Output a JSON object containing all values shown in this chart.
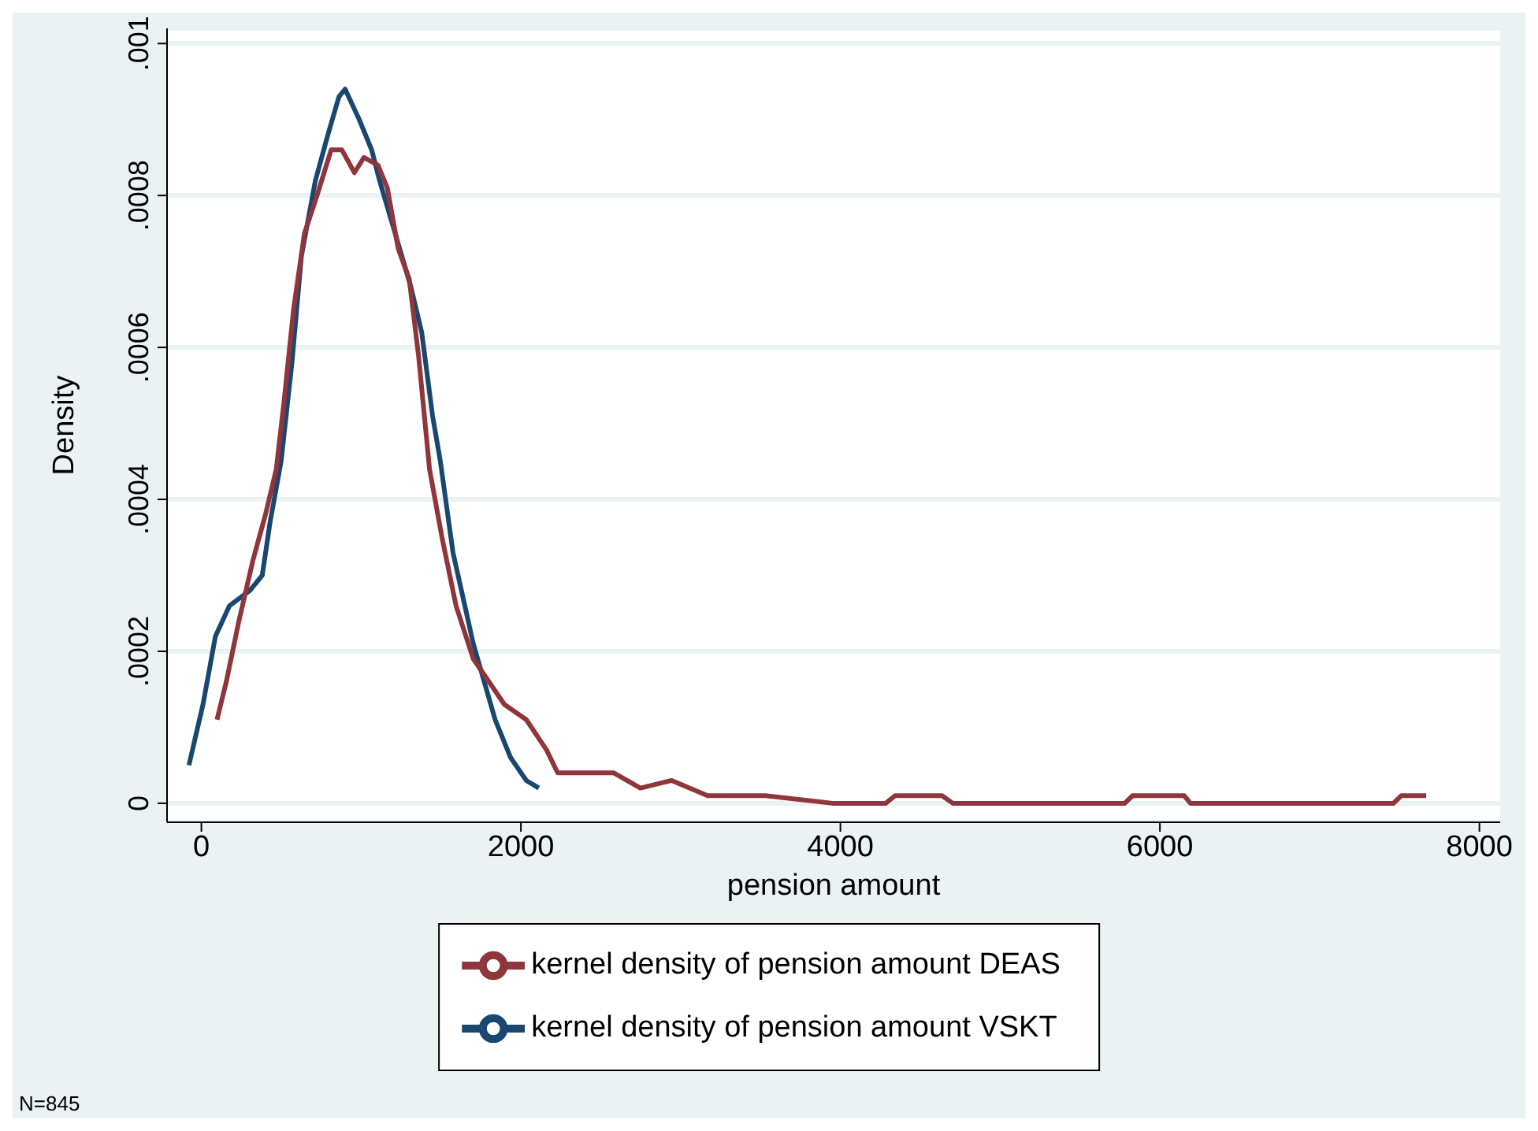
{
  "chart_data": {
    "type": "line",
    "xlabel": "pension amount",
    "ylabel": "Density",
    "xlim": [
      -215,
      8130
    ],
    "ylim": [
      -2.5e-05,
      0.00102
    ],
    "xticks": [
      0,
      2000,
      4000,
      6000,
      8000
    ],
    "yticks": [
      0,
      {
        "value": 0.0002,
        "label": ".0002"
      },
      {
        "value": 0.0004,
        "label": ".0004"
      },
      {
        "value": 0.0006,
        "label": ".0006"
      },
      {
        "value": 0.0008,
        "label": ".0008"
      },
      {
        "value": 0.001,
        "label": ".001"
      }
    ],
    "grid": "y",
    "legend": "bottom",
    "marker": "none",
    "line_style": "solid",
    "annotations": [
      "N=845"
    ],
    "series": [
      {
        "name": "kernel density of pension amount VSKT",
        "color": "#1a476f",
        "x": [
          -78,
          10,
          88,
          176,
          303,
          381,
          430,
          499,
          567,
          626,
          714,
          792,
          861,
          900,
          988,
          1066,
          1115,
          1213,
          1311,
          1379,
          1447,
          1496,
          1575,
          1702,
          1839,
          1936,
          2034,
          2112
        ],
        "values": [
          5e-05,
          0.00013,
          0.00022,
          0.00026,
          0.00028,
          0.0003,
          0.00037,
          0.00045,
          0.00058,
          0.00072,
          0.00082,
          0.00088,
          0.00093,
          0.00094,
          0.0009,
          0.00086,
          0.00082,
          0.00075,
          0.00068,
          0.00062,
          0.00051,
          0.00045,
          0.00033,
          0.00021,
          0.00011,
          6e-05,
          3e-05,
          2e-05
        ]
      },
      {
        "name": "kernel density of pension amount DEAS",
        "color": "#90353b",
        "x": [
          98,
          156,
          235,
          323,
          401,
          469,
          518,
          577,
          645,
          724,
          812,
          880,
          958,
          1017,
          1105,
          1164,
          1232,
          1301,
          1359,
          1428,
          1506,
          1594,
          1702,
          1800,
          1897,
          2034,
          2161,
          2230,
          2425,
          2582,
          2748,
          2944,
          3169,
          3403,
          3531,
          3951,
          4284,
          4342,
          4636,
          4704,
          5780,
          5829,
          6152,
          6191,
          7462,
          7511,
          7667
        ],
        "values": [
          0.00011,
          0.00016,
          0.00024,
          0.00032,
          0.00038,
          0.00044,
          0.00053,
          0.00065,
          0.00075,
          0.0008,
          0.00086,
          0.00086,
          0.00083,
          0.00085,
          0.00084,
          0.00081,
          0.00073,
          0.00069,
          0.00059,
          0.00044,
          0.00035,
          0.00026,
          0.00019,
          0.00016,
          0.00013,
          0.00011,
          7e-05,
          4e-05,
          4e-05,
          4e-05,
          2e-05,
          3e-05,
          1e-05,
          1e-05,
          1e-05,
          0,
          0,
          1e-05,
          1e-05,
          0,
          0,
          1e-05,
          1e-05,
          0,
          0,
          1e-05,
          1e-05
        ]
      }
    ]
  }
}
